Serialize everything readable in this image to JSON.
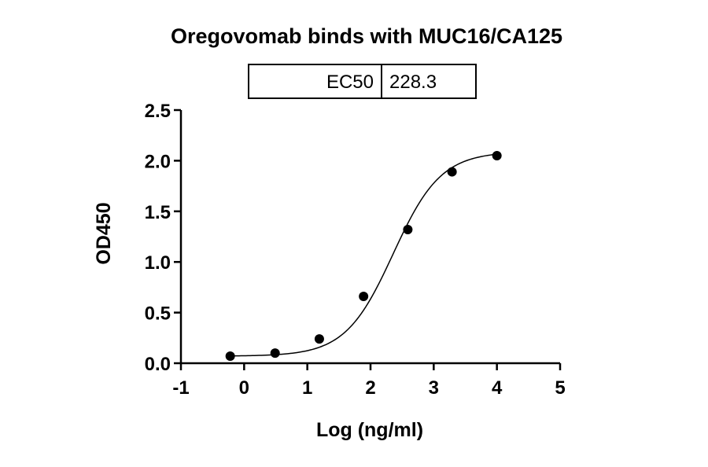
{
  "chart_data": {
    "type": "scatter",
    "title": "Oregovomab binds with MUC16/CA125",
    "xlabel": "Log (ng/ml)",
    "ylabel": "OD450",
    "xlim": [
      -1,
      5
    ],
    "ylim": [
      0,
      2.5
    ],
    "x_ticks": [
      "-1",
      "0",
      "1",
      "2",
      "3",
      "4",
      "5"
    ],
    "y_ticks": [
      "0.0",
      "0.5",
      "1.0",
      "1.5",
      "2.0",
      "2.5"
    ],
    "grid": false,
    "series": [
      {
        "x": [
          -0.22,
          0.49,
          1.19,
          1.89,
          2.59,
          3.29,
          4.0
        ],
        "y": [
          0.07,
          0.1,
          0.24,
          0.66,
          1.32,
          1.89,
          2.05
        ]
      }
    ],
    "fit": {
      "type": "4PL",
      "bottom": 0.07,
      "top": 2.09,
      "logEC50": 2.358,
      "hill": 1.15
    },
    "table": {
      "label": "EC50",
      "value": "228.3"
    }
  }
}
